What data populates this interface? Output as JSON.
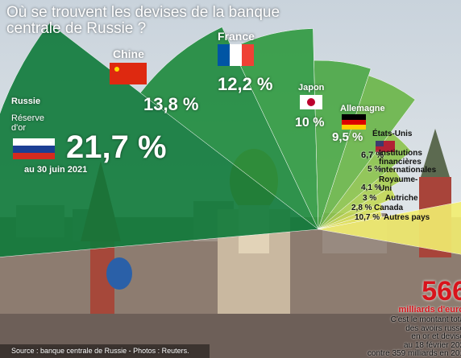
{
  "chart_data": {
    "type": "fan",
    "title": "Où se trouvent les devises de la banque centrale de Russie ?",
    "categories": [
      "Russie",
      "Chine",
      "France",
      "Japon",
      "Allemagne",
      "États-Unis",
      "Institutions financières internationales",
      "Royaume-Uni",
      "Autriche",
      "Canada",
      "Autres pays"
    ],
    "values": [
      21.7,
      13.8,
      12.2,
      10,
      9.5,
      6.7,
      5,
      4.1,
      3,
      2.8,
      10.7
    ],
    "value_labels": [
      "21,7 %",
      "13,8 %",
      "12,2 %",
      "10 %",
      "9,5 %",
      "6,7 %",
      "5 %",
      "4,1 %",
      "3 %",
      "2,8 %",
      "10,7 %"
    ],
    "colors": [
      "#0f7a3a",
      "#1d8a3c",
      "#2f9a40",
      "#4aa844",
      "#6ab648",
      "#8cc44c",
      "#a9cf50",
      "#c3d955",
      "#d8e25a",
      "#e8ea62",
      "#f2ee70"
    ],
    "annotations": {
      "russia_note": "Réserve d'or",
      "date": "au 30 juin 2021",
      "total": "566",
      "total_unit": "milliards d'euro",
      "note": [
        "C'est le montant tota",
        "des avoirs russe",
        "en or et devise",
        "au 18 février 202",
        "contre 359 milliards en 201"
      ],
      "source": "Source : banque centrale de Russie - Photos : Reuters."
    }
  }
}
